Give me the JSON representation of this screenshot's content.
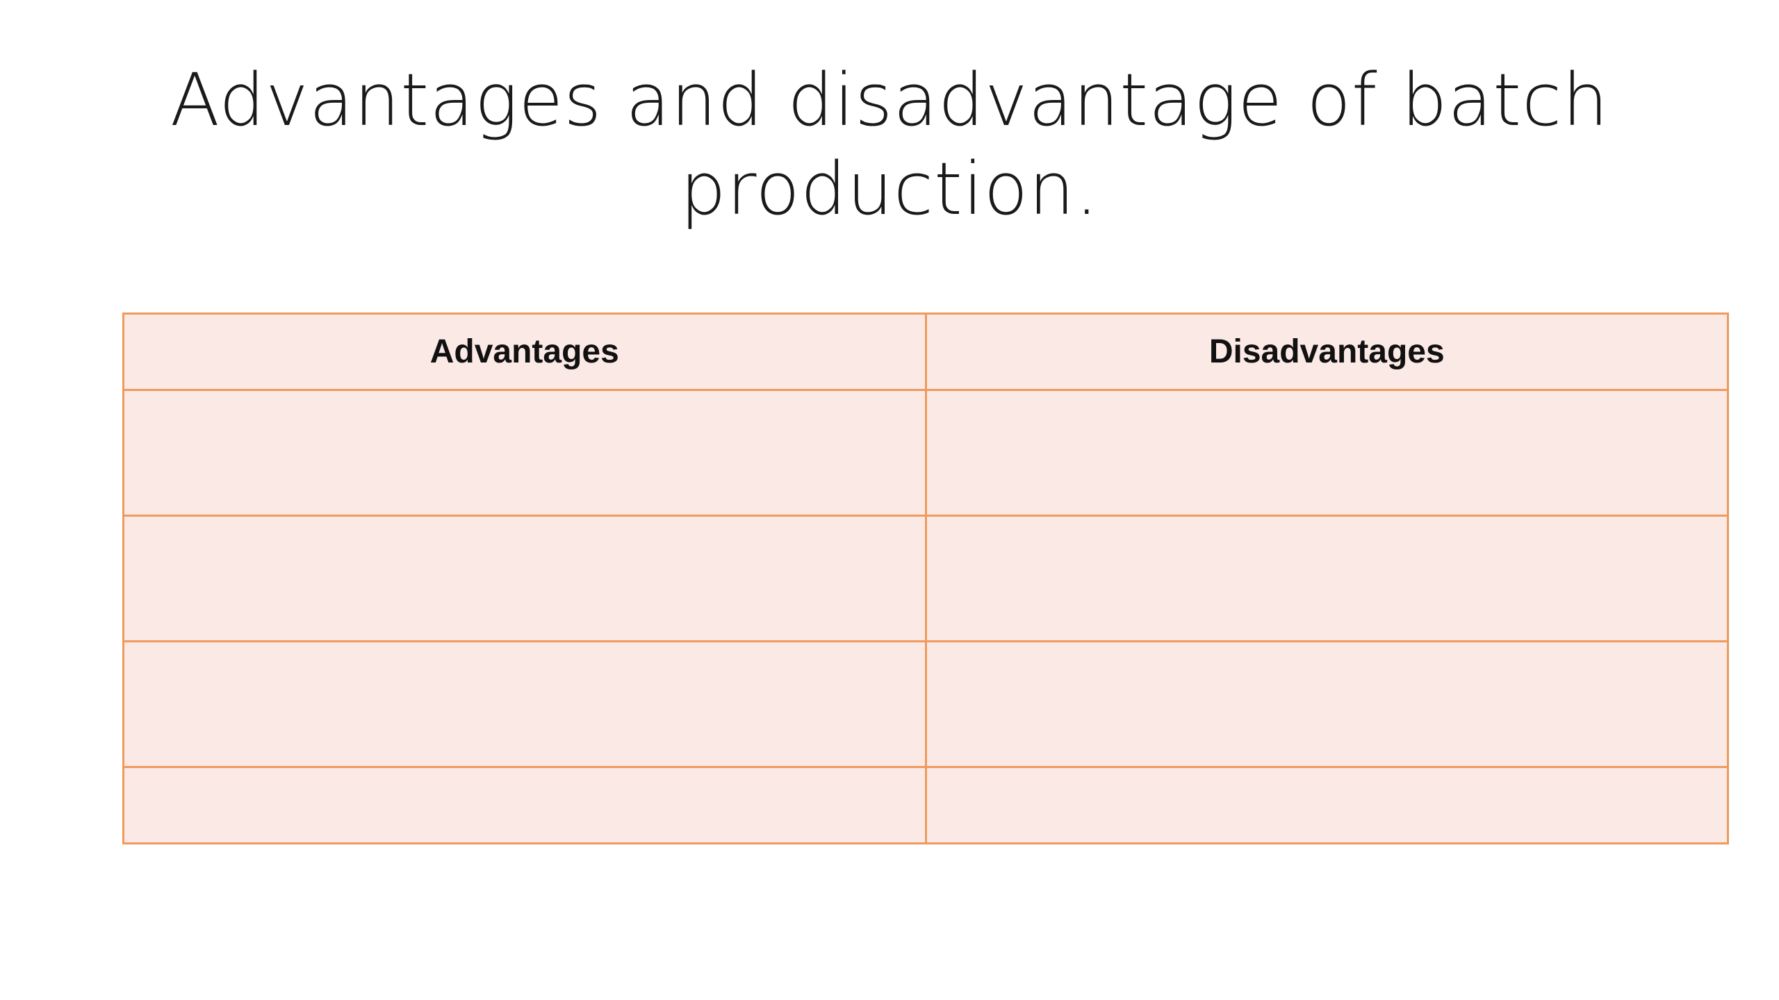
{
  "slide": {
    "title_line1": "Advantages and disadvantage of batch",
    "title_line2": "production."
  },
  "table": {
    "headers": [
      "Advantages",
      "Disadvantages"
    ],
    "rows": [
      [
        "",
        ""
      ],
      [
        "",
        ""
      ],
      [
        "",
        ""
      ],
      [
        "",
        ""
      ]
    ],
    "border_color": "#ef9a5c",
    "fill_color": "#fbe9e6"
  }
}
